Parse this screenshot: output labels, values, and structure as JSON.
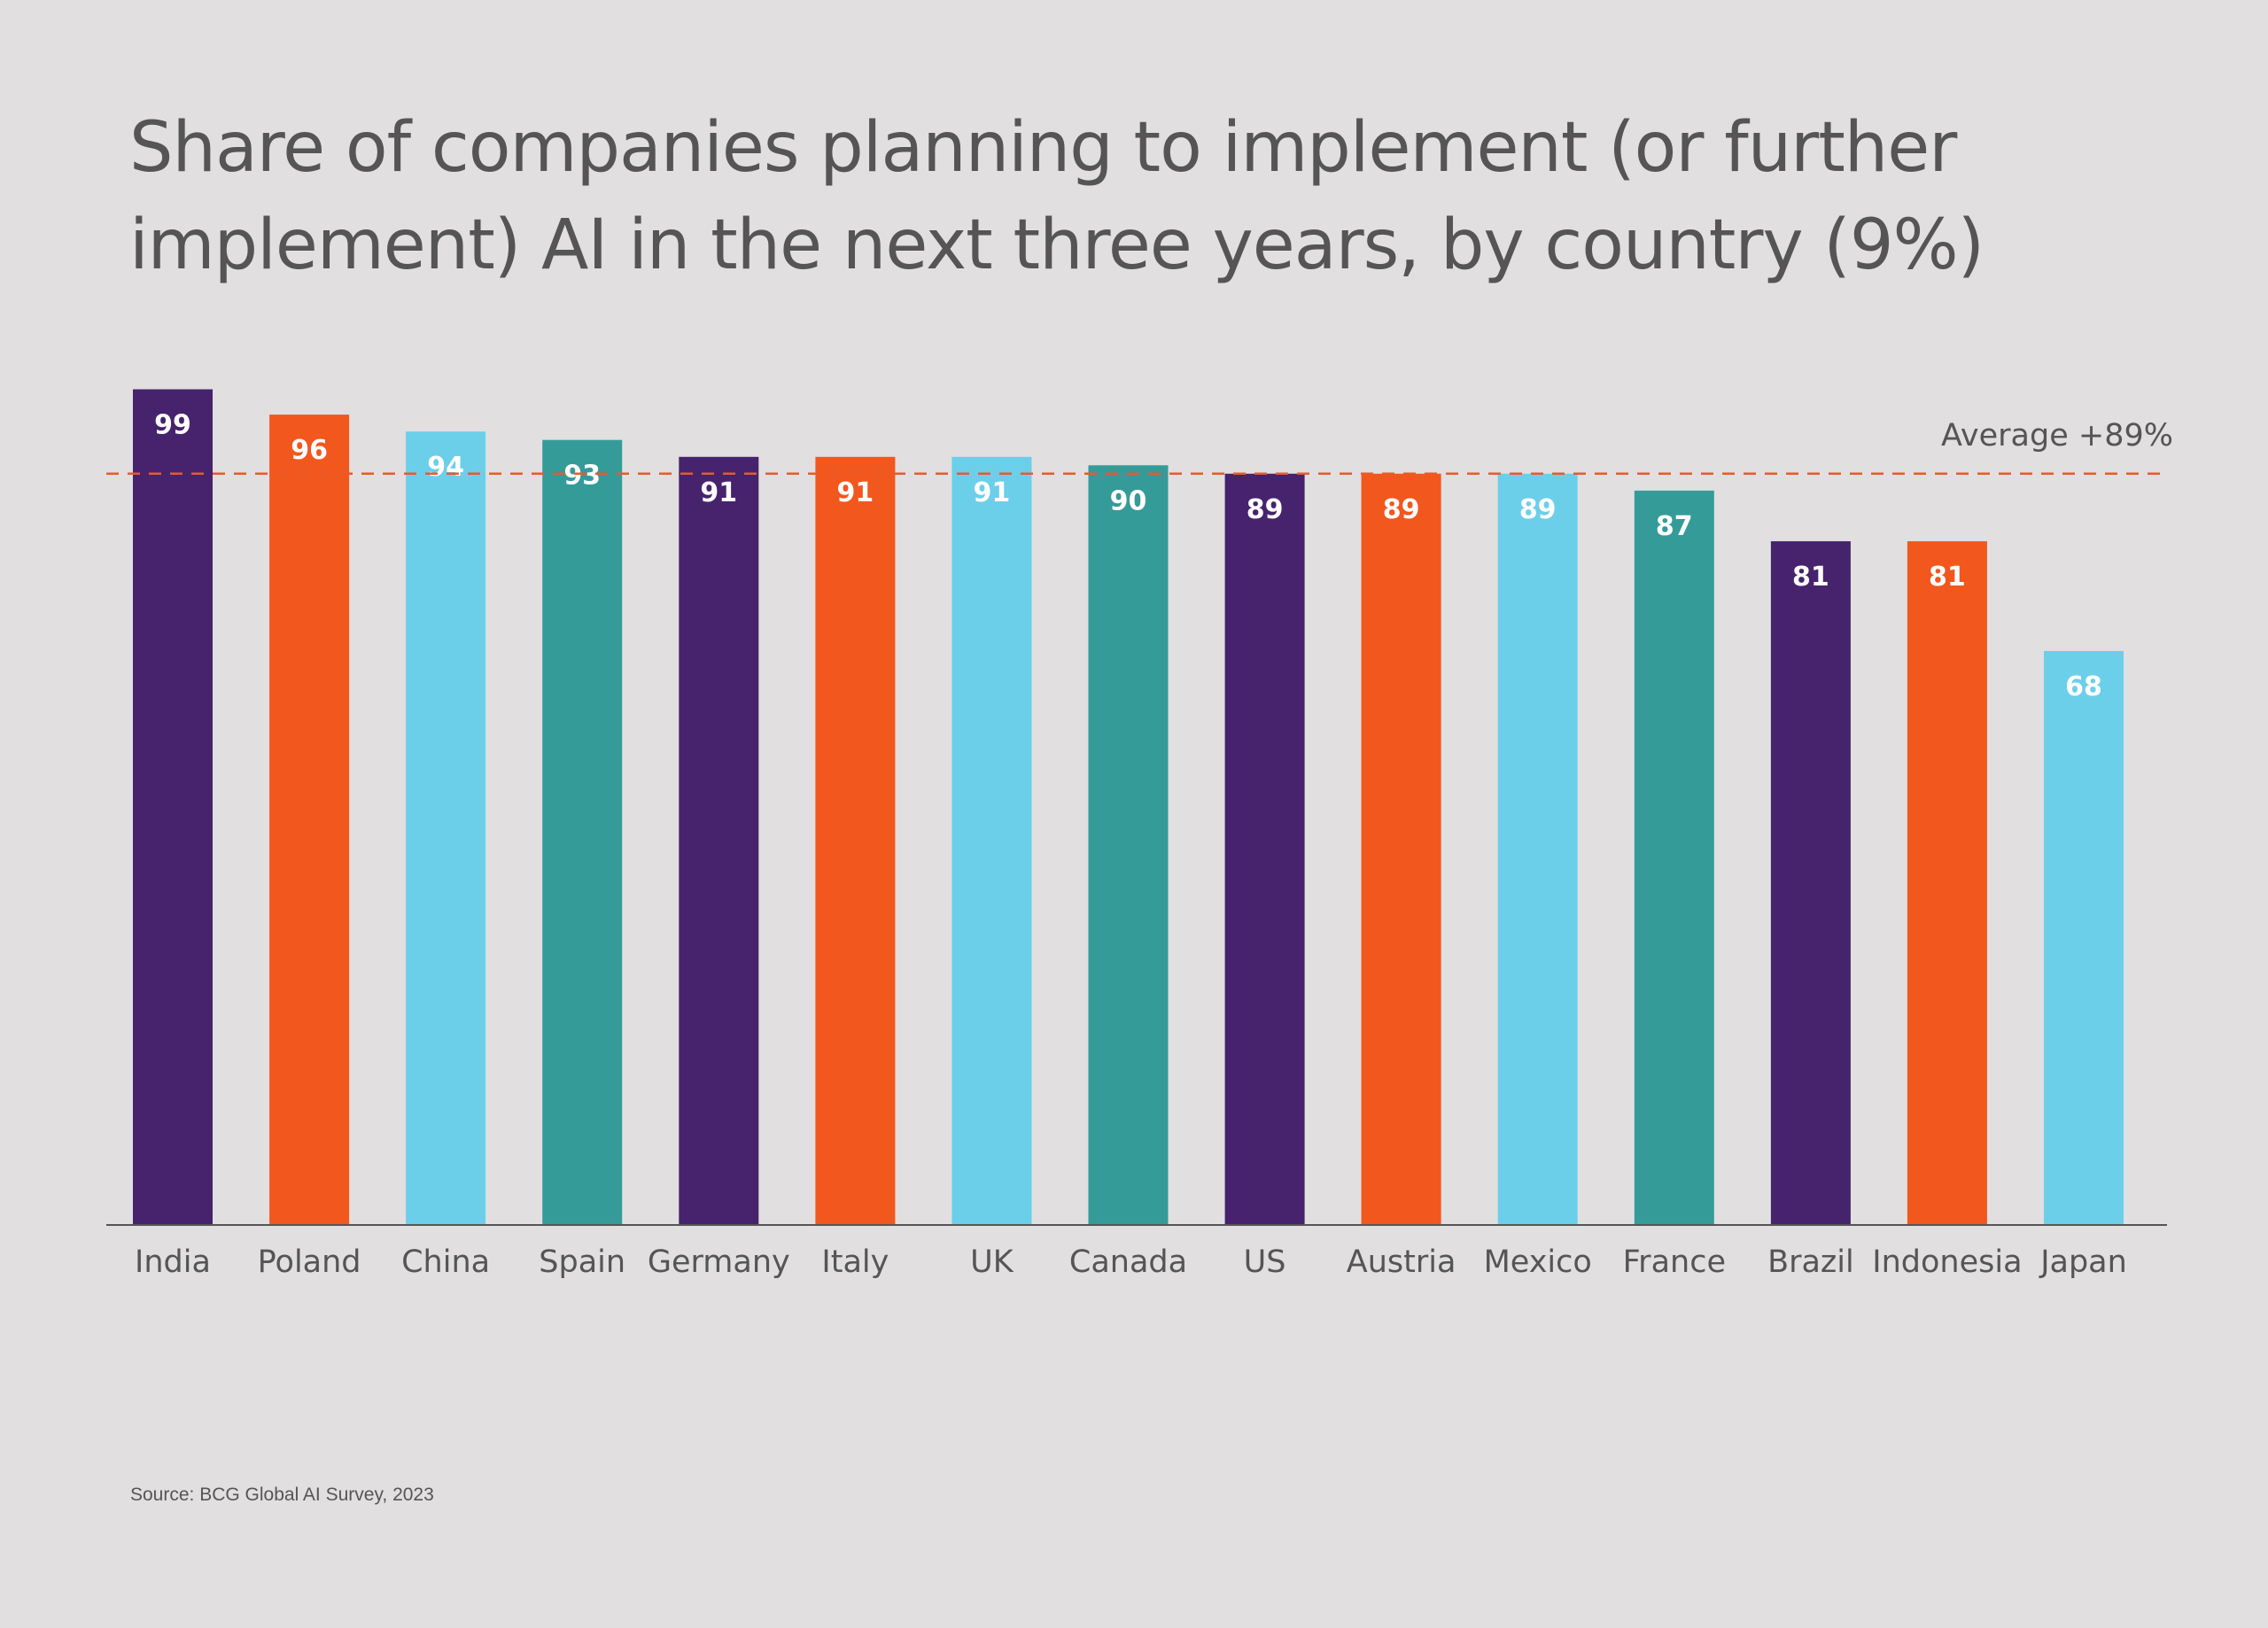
{
  "colors": {
    "background": "#e1dfe0",
    "purple": "#46236c",
    "orange": "#f2571d",
    "light_blue": "#6ccfea",
    "teal": "#359b99",
    "average_line": "#e85a2a",
    "text": "#555555",
    "value_label": "#ffffff"
  },
  "chart_data": {
    "type": "bar",
    "title": "Share of companies planning to implement (or further implement) AI in the next three years, by country (9%)",
    "categories": [
      "India",
      "Poland",
      "China",
      "Spain",
      "Germany",
      "Italy",
      "UK",
      "Canada",
      "US",
      "Austria",
      "Mexico",
      "France",
      "Brazil",
      "Indonesia",
      "Japan"
    ],
    "values": [
      99,
      96,
      94,
      93,
      91,
      91,
      91,
      90,
      89,
      89,
      89,
      87,
      81,
      81,
      68
    ],
    "bar_colors": [
      "#46236c",
      "#f2571d",
      "#6ccfea",
      "#359b99",
      "#46236c",
      "#f2571d",
      "#6ccfea",
      "#359b99",
      "#46236c",
      "#f2571d",
      "#6ccfea",
      "#359b99",
      "#46236c",
      "#f2571d",
      "#6ccfea"
    ],
    "average": {
      "value": 89,
      "label": "Average +89%"
    },
    "ylim": [
      0,
      100
    ],
    "xlabel": "",
    "ylabel": "",
    "grid": false,
    "data_labels": true
  },
  "source": "Source: BCG Global AI Survey, 2023"
}
